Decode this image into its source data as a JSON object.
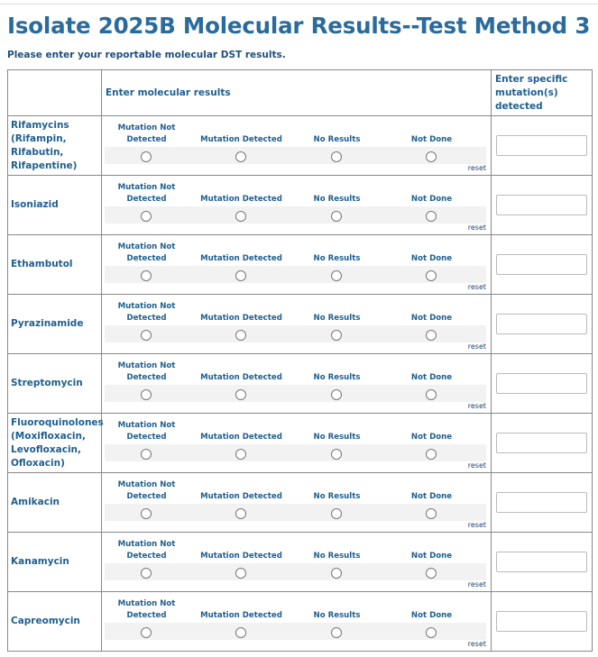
{
  "title": "Isolate 2025B Molecular Results--Test Method 3",
  "subtitle": "Please enter your reportable molecular DST results.",
  "table": {
    "header_col2": "Enter molecular results",
    "header_col3": "Enter specific mutation(s) detected",
    "options": [
      "Mutation Not Detected",
      "Mutation Detected",
      "No Results",
      "Not Done"
    ],
    "reset_label": "reset",
    "rows": [
      {
        "drug": "Rifamycins (Rifampin, Rifabutin, Rifapentine)"
      },
      {
        "drug": "Isoniazid"
      },
      {
        "drug": "Ethambutol"
      },
      {
        "drug": "Pyrazinamide"
      },
      {
        "drug": "Streptomycin"
      },
      {
        "drug": "Fluoroquinolones (Moxifloxacin, Levofloxacin, Ofloxacin)"
      },
      {
        "drug": "Amikacin"
      },
      {
        "drug": "Kanamycin"
      },
      {
        "drug": "Capreomycin"
      }
    ]
  }
}
